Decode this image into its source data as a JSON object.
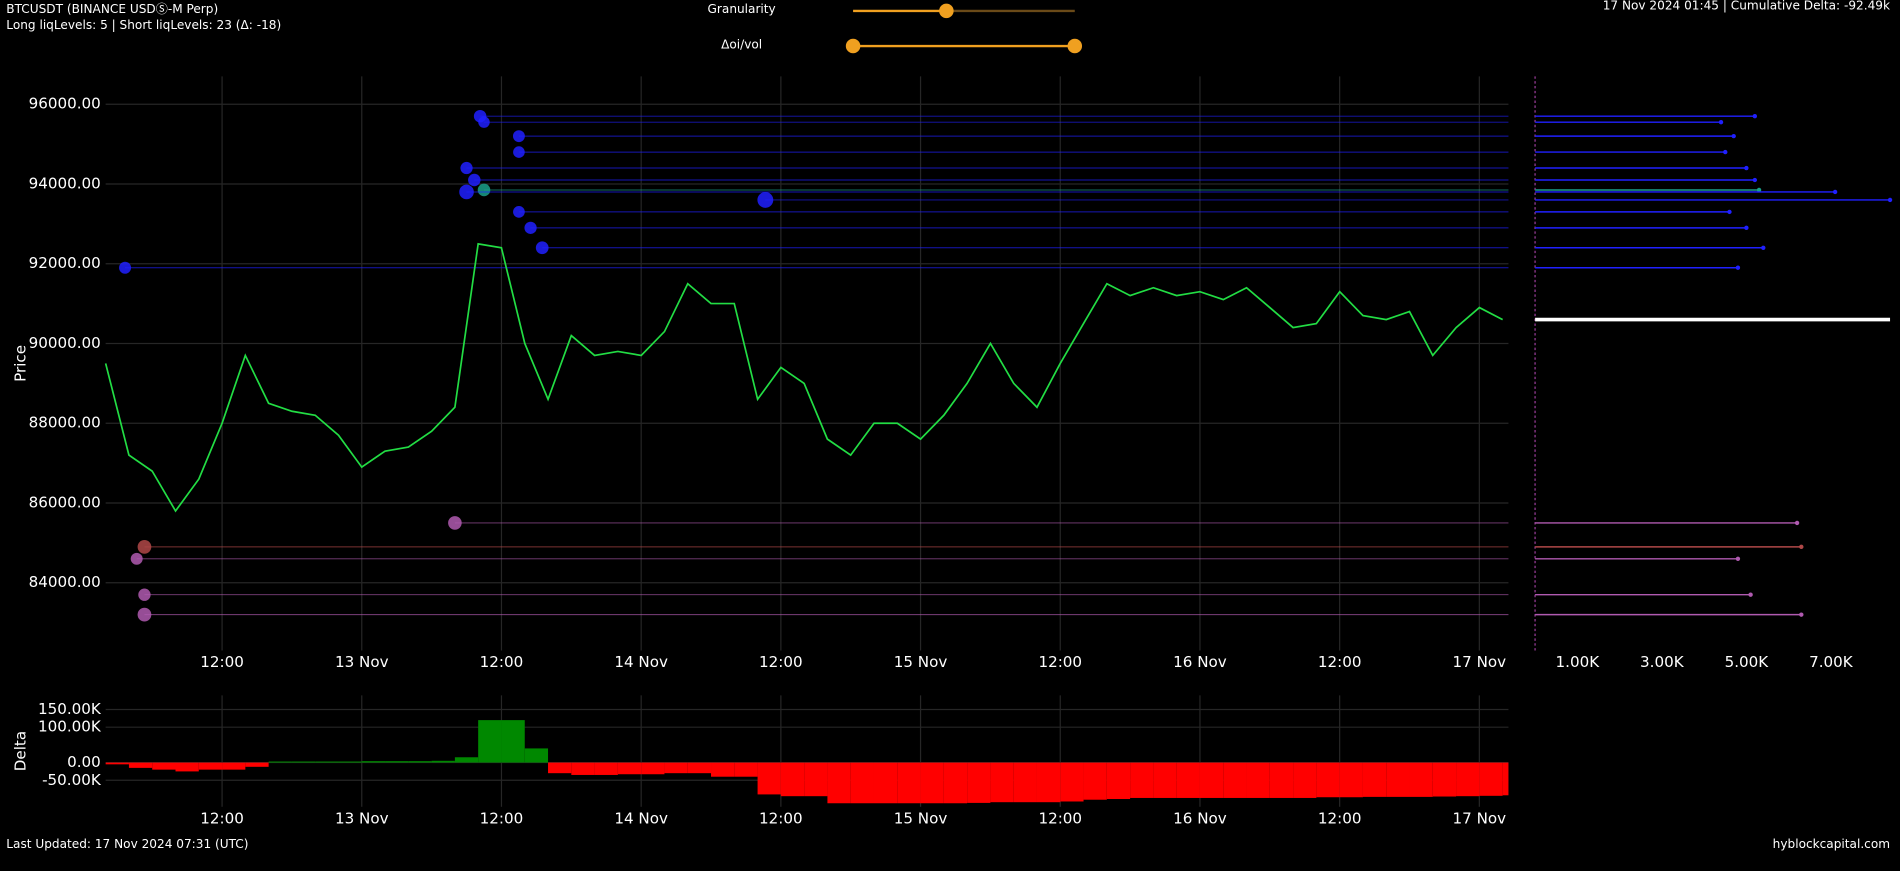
{
  "header": {
    "symbol": "BTCUSDT (BINANCE USDⓈ-M Perp)",
    "liq_levels": "Long liqLevels: 5 | Short liqLevels: 23 (Δ: -18)",
    "status": "17 Nov 2024 01:45 | Cumulative Delta: -92.49k"
  },
  "controls": [
    {
      "label": "Granularity"
    },
    {
      "label": "Δoi/vol"
    }
  ],
  "footer": {
    "updated": "Last Updated: 17 Nov 2024 07:31 (UTC)",
    "brand": "hyblockcapital.com"
  },
  "chart_data": [
    {
      "type": "line",
      "y_label": "Price",
      "color": "#22dd44",
      "grid": true,
      "xlim": [
        "12 Nov 02:00",
        "17 Nov 02:30"
      ],
      "xticks": [
        {
          "value": "12 Nov 12:00",
          "label": "12:00"
        },
        {
          "value": "13 Nov 00:00",
          "label": "13 Nov"
        },
        {
          "value": "13 Nov 12:00",
          "label": "12:00"
        },
        {
          "value": "14 Nov 00:00",
          "label": "14 Nov"
        },
        {
          "value": "14 Nov 12:00",
          "label": "12:00"
        },
        {
          "value": "15 Nov 00:00",
          "label": "15 Nov"
        },
        {
          "value": "15 Nov 12:00",
          "label": "12:00"
        },
        {
          "value": "16 Nov 00:00",
          "label": "16 Nov"
        },
        {
          "value": "16 Nov 12:00",
          "label": "12:00"
        },
        {
          "value": "17 Nov 00:00",
          "label": "17 Nov"
        }
      ],
      "ylim": [
        82300,
        96700
      ],
      "yticks": [
        {
          "value": 84000,
          "label": "84000.00"
        },
        {
          "value": 86000,
          "label": "86000.00"
        },
        {
          "value": 88000,
          "label": "88000.00"
        },
        {
          "value": 90000,
          "label": "90000.00"
        },
        {
          "value": 92000,
          "label": "92000.00"
        },
        {
          "value": 94000,
          "label": "94000.00"
        },
        {
          "value": 96000,
          "label": "96000.00"
        }
      ],
      "x": [
        "12 Nov 02:00",
        "12 Nov 04:00",
        "12 Nov 06:00",
        "12 Nov 08:00",
        "12 Nov 10:00",
        "12 Nov 12:00",
        "12 Nov 14:00",
        "12 Nov 16:00",
        "12 Nov 18:00",
        "12 Nov 20:00",
        "12 Nov 22:00",
        "13 Nov 00:00",
        "13 Nov 02:00",
        "13 Nov 04:00",
        "13 Nov 06:00",
        "13 Nov 08:00",
        "13 Nov 10:00",
        "13 Nov 12:00",
        "13 Nov 14:00",
        "13 Nov 16:00",
        "13 Nov 18:00",
        "13 Nov 20:00",
        "13 Nov 22:00",
        "14 Nov 00:00",
        "14 Nov 02:00",
        "14 Nov 04:00",
        "14 Nov 06:00",
        "14 Nov 08:00",
        "14 Nov 10:00",
        "14 Nov 12:00",
        "14 Nov 14:00",
        "14 Nov 16:00",
        "14 Nov 18:00",
        "14 Nov 20:00",
        "14 Nov 22:00",
        "15 Nov 00:00",
        "15 Nov 02:00",
        "15 Nov 04:00",
        "15 Nov 06:00",
        "15 Nov 08:00",
        "15 Nov 10:00",
        "15 Nov 12:00",
        "15 Nov 14:00",
        "15 Nov 16:00",
        "15 Nov 18:00",
        "15 Nov 20:00",
        "15 Nov 22:00",
        "16 Nov 00:00",
        "16 Nov 02:00",
        "16 Nov 04:00",
        "16 Nov 06:00",
        "16 Nov 08:00",
        "16 Nov 10:00",
        "16 Nov 12:00",
        "16 Nov 14:00",
        "16 Nov 16:00",
        "16 Nov 18:00",
        "16 Nov 20:00",
        "16 Nov 22:00",
        "17 Nov 00:00",
        "17 Nov 02:00"
      ],
      "values": [
        89500,
        87200,
        86800,
        85800,
        86600,
        88000,
        89700,
        88500,
        88300,
        88200,
        87700,
        86900,
        87300,
        87400,
        87800,
        88400,
        92500,
        92400,
        90000,
        88600,
        90200,
        89700,
        89800,
        89700,
        90300,
        91500,
        91000,
        91000,
        88600,
        89400,
        89000,
        87600,
        87200,
        88000,
        88000,
        87600,
        88200,
        89000,
        90000,
        89000,
        88400,
        89500,
        90500,
        91500,
        91200,
        91400,
        91200,
        91300,
        91100,
        91400,
        90900,
        90400,
        90500,
        91300,
        90700,
        90600,
        90800,
        89700,
        90400,
        90900,
        90600
      ],
      "level_start": [
        "13 Nov 10:10",
        "13 Nov 10:30",
        "13 Nov 13:30",
        "13 Nov 13:30",
        "13 Nov 09:00",
        "13 Nov 09:40",
        "13 Nov 10:30",
        "13 Nov 09:00",
        "14 Nov 10:40",
        "13 Nov 13:30",
        "13 Nov 14:30",
        "13 Nov 15:30",
        "12 Nov 03:40",
        "13 Nov 08:00",
        "12 Nov 05:20",
        "12 Nov 04:40",
        "12 Nov 05:20",
        "12 Nov 05:20"
      ]
    },
    {
      "type": "hbar",
      "grid": false,
      "xlim": [
        0,
        8400
      ],
      "xticks": [
        {
          "value": 1000,
          "label": "1.00K"
        },
        {
          "value": 3000,
          "label": "3.00K"
        },
        {
          "value": 5000,
          "label": "5.00K"
        },
        {
          "value": 7000,
          "label": "7.00K"
        }
      ],
      "ylim": [
        82300,
        96700
      ],
      "y": [
        95700,
        95550,
        95200,
        94800,
        94400,
        94100,
        93850,
        93800,
        93600,
        93300,
        92900,
        92400,
        91900,
        85500,
        84900,
        84600,
        83700,
        83200
      ],
      "values": [
        5200,
        4400,
        4700,
        4500,
        5000,
        5200,
        5300,
        7100,
        8400,
        4600,
        5000,
        5400,
        4800,
        6200,
        6300,
        4800,
        5100,
        6300
      ],
      "colors": [
        "#2020ff",
        "#2020ff",
        "#2020ff",
        "#2020ff",
        "#2020ff",
        "#2020ff",
        "#1aa08a",
        "#2020ff",
        "#2020ff",
        "#2020ff",
        "#2020ff",
        "#2020ff",
        "#2020ff",
        "#b05ab0",
        "#b04848",
        "#b05ab0",
        "#b05ab0",
        "#b05ab0"
      ],
      "current_color": "#ffffff"
    },
    {
      "type": "bar",
      "y_label": "Delta",
      "grid": true,
      "positive_color": "#008800",
      "negative_color": "#ff0000",
      "xlim": [
        "12 Nov 02:00",
        "17 Nov 02:30"
      ],
      "xticks": [
        {
          "value": "12 Nov 12:00",
          "label": "12:00"
        },
        {
          "value": "13 Nov 00:00",
          "label": "13 Nov"
        },
        {
          "value": "13 Nov 12:00",
          "label": "12:00"
        },
        {
          "value": "14 Nov 00:00",
          "label": "14 Nov"
        },
        {
          "value": "14 Nov 12:00",
          "label": "12:00"
        },
        {
          "value": "15 Nov 00:00",
          "label": "15 Nov"
        },
        {
          "value": "15 Nov 12:00",
          "label": "12:00"
        },
        {
          "value": "16 Nov 00:00",
          "label": "16 Nov"
        },
        {
          "value": "16 Nov 12:00",
          "label": "12:00"
        },
        {
          "value": "17 Nov 00:00",
          "label": "17 Nov"
        }
      ],
      "ylim": [
        -125000,
        190000
      ],
      "yticks": [
        {
          "value": -50000,
          "label": "-50.00K"
        },
        {
          "value": 0,
          "label": "0.00"
        },
        {
          "value": 100000,
          "label": "100.00K"
        },
        {
          "value": 150000,
          "label": "150.00K"
        }
      ],
      "x": [
        "12 Nov 02:00",
        "12 Nov 04:00",
        "12 Nov 06:00",
        "12 Nov 08:00",
        "12 Nov 10:00",
        "12 Nov 12:00",
        "12 Nov 14:00",
        "12 Nov 16:00",
        "12 Nov 18:00",
        "12 Nov 20:00",
        "12 Nov 22:00",
        "13 Nov 00:00",
        "13 Nov 02:00",
        "13 Nov 04:00",
        "13 Nov 06:00",
        "13 Nov 08:00",
        "13 Nov 10:00",
        "13 Nov 12:00",
        "13 Nov 14:00",
        "13 Nov 16:00",
        "13 Nov 18:00",
        "13 Nov 20:00",
        "13 Nov 22:00",
        "14 Nov 00:00",
        "14 Nov 02:00",
        "14 Nov 04:00",
        "14 Nov 06:00",
        "14 Nov 08:00",
        "14 Nov 10:00",
        "14 Nov 12:00",
        "14 Nov 14:00",
        "14 Nov 16:00",
        "14 Nov 18:00",
        "14 Nov 20:00",
        "14 Nov 22:00",
        "15 Nov 00:00",
        "15 Nov 02:00",
        "15 Nov 04:00",
        "15 Nov 06:00",
        "15 Nov 08:00",
        "15 Nov 10:00",
        "15 Nov 12:00",
        "15 Nov 14:00",
        "15 Nov 16:00",
        "15 Nov 18:00",
        "15 Nov 20:00",
        "15 Nov 22:00",
        "16 Nov 00:00",
        "16 Nov 02:00",
        "16 Nov 04:00",
        "16 Nov 06:00",
        "16 Nov 08:00",
        "16 Nov 10:00",
        "16 Nov 12:00",
        "16 Nov 14:00",
        "16 Nov 16:00",
        "16 Nov 18:00",
        "16 Nov 20:00",
        "16 Nov 22:00",
        "17 Nov 00:00",
        "17 Nov 02:00"
      ],
      "values": [
        -5000,
        -15000,
        -20000,
        -25000,
        -20000,
        -20000,
        -12000,
        3000,
        3000,
        3000,
        3000,
        4000,
        4000,
        4000,
        5000,
        15000,
        120000,
        120000,
        40000,
        -30000,
        -35000,
        -35000,
        -33000,
        -33000,
        -30000,
        -30000,
        -40000,
        -40000,
        -90000,
        -95000,
        -95000,
        -115000,
        -115000,
        -115000,
        -115000,
        -115000,
        -115000,
        -114000,
        -112000,
        -112000,
        -112000,
        -110000,
        -105000,
        -103000,
        -100000,
        -100000,
        -100000,
        -100000,
        -100000,
        -100000,
        -100000,
        -100000,
        -98000,
        -98000,
        -97000,
        -97000,
        -97000,
        -96000,
        -95000,
        -94000,
        -92490
      ]
    }
  ]
}
